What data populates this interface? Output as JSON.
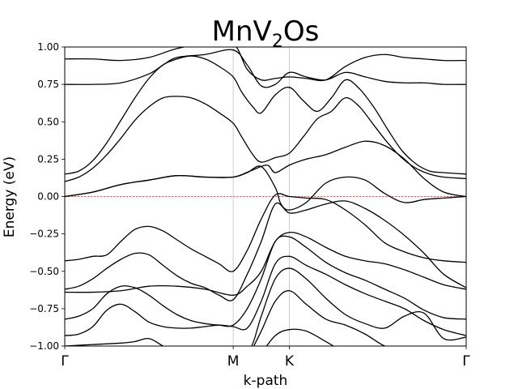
{
  "chart_data": {
    "type": "line",
    "title": {
      "main": "MnV",
      "subscript": "2",
      "suffix": "Os"
    },
    "xlabel": "k-path",
    "ylabel": "Energy (eV)",
    "xlim": [
      0,
      1.43
    ],
    "ylim": [
      -1.0,
      1.0
    ],
    "yticks": [
      -1.0,
      -0.75,
      -0.5,
      -0.25,
      0.0,
      0.25,
      0.5,
      0.75,
      1.0
    ],
    "ytick_labels": [
      "−1.00",
      "−0.75",
      "−0.50",
      "−0.25",
      "0.00",
      "0.25",
      "0.50",
      "0.75",
      "1.00"
    ],
    "high_symmetry_points": [
      {
        "label": "Γ",
        "x": 0.0
      },
      {
        "label": "M",
        "x": 0.6
      },
      {
        "label": "K",
        "x": 0.8
      },
      {
        "label": "Γ",
        "x": 1.43
      }
    ],
    "fermi_level": 0.0,
    "grid": false,
    "band_color": "#000000",
    "fermi_color": "#d62728",
    "vline_color": "#c8c8c8",
    "series": [
      {
        "x": [
          0,
          0.1,
          0.2,
          0.3,
          0.4,
          0.5,
          0.6,
          0.65,
          0.7,
          0.75,
          0.8,
          0.86,
          0.93,
          1.0,
          1.07,
          1.14,
          1.21,
          1.28,
          1.35,
          1.43
        ],
        "values": [
          0.92,
          0.92,
          0.91,
          0.93,
          0.99,
          1.02,
          1.02,
          0.85,
          0.78,
          0.79,
          0.8,
          0.79,
          0.78,
          0.87,
          0.93,
          0.95,
          0.93,
          0.92,
          0.91,
          0.91
        ]
      },
      {
        "x": [
          0,
          0.1,
          0.2,
          0.3,
          0.35,
          0.4,
          0.5,
          0.6,
          0.65,
          0.7,
          0.75,
          0.8,
          0.86,
          0.93,
          1.0,
          1.07,
          1.14,
          1.21,
          1.28,
          1.35,
          1.43
        ],
        "values": [
          0.75,
          0.75,
          0.76,
          0.82,
          0.88,
          0.93,
          0.95,
          0.98,
          0.88,
          0.74,
          0.75,
          0.83,
          0.8,
          0.78,
          0.83,
          0.8,
          0.77,
          0.76,
          0.76,
          0.75,
          0.75
        ]
      },
      {
        "x": [
          0,
          0.05,
          0.1,
          0.15,
          0.2,
          0.25,
          0.3,
          0.35,
          0.4,
          0.45,
          0.5,
          0.55,
          0.6,
          0.63,
          0.67,
          0.7,
          0.75,
          0.8,
          0.85,
          0.9,
          0.95,
          1.0,
          1.05,
          1.1,
          1.15,
          1.2,
          1.25,
          1.3,
          1.35,
          1.43
        ],
        "values": [
          0.15,
          0.17,
          0.24,
          0.36,
          0.51,
          0.66,
          0.79,
          0.88,
          0.92,
          0.94,
          0.92,
          0.87,
          0.8,
          0.7,
          0.6,
          0.56,
          0.68,
          0.73,
          0.64,
          0.57,
          0.66,
          0.78,
          0.72,
          0.6,
          0.45,
          0.31,
          0.22,
          0.17,
          0.16,
          0.15
        ]
      },
      {
        "x": [
          0,
          0.05,
          0.1,
          0.15,
          0.2,
          0.25,
          0.3,
          0.35,
          0.4,
          0.45,
          0.5,
          0.55,
          0.6,
          0.63,
          0.67,
          0.7,
          0.75,
          0.8,
          0.85,
          0.9,
          0.95,
          1.0,
          1.05,
          1.1,
          1.15,
          1.2,
          1.25,
          1.3,
          1.35,
          1.43
        ],
        "values": [
          0.1,
          0.13,
          0.19,
          0.28,
          0.39,
          0.51,
          0.6,
          0.66,
          0.67,
          0.66,
          0.62,
          0.56,
          0.49,
          0.4,
          0.28,
          0.23,
          0.26,
          0.29,
          0.4,
          0.52,
          0.57,
          0.66,
          0.6,
          0.48,
          0.36,
          0.26,
          0.19,
          0.15,
          0.13,
          0.12
        ]
      },
      {
        "x": [
          0,
          0.1,
          0.2,
          0.3,
          0.4,
          0.5,
          0.6,
          0.66,
          0.72,
          0.75,
          0.8,
          0.86,
          0.93,
          1.0,
          1.07,
          1.14,
          1.21,
          1.28,
          1.35,
          1.43
        ],
        "values": [
          0.0,
          0.03,
          0.08,
          0.11,
          0.14,
          0.13,
          0.13,
          0.17,
          0.21,
          0.16,
          0.21,
          0.25,
          0.28,
          0.33,
          0.37,
          0.34,
          0.25,
          0.12,
          0.03,
          0.0
        ]
      },
      {
        "x": [
          0,
          0.1,
          0.2,
          0.3,
          0.4,
          0.5,
          0.6,
          0.65,
          0.7,
          0.75,
          0.77,
          0.8,
          0.86,
          0.93,
          1.0,
          1.07,
          1.14,
          1.21,
          1.28,
          1.35,
          1.43
        ],
        "values": [
          0.0,
          0.03,
          0.08,
          0.11,
          0.14,
          0.13,
          0.13,
          0.16,
          0.2,
          0.06,
          -0.05,
          -0.09,
          -0.04,
          0.09,
          0.13,
          0.11,
          0.02,
          -0.04,
          -0.02,
          -0.01,
          0.0
        ]
      },
      {
        "x": [
          0,
          0.05,
          0.1,
          0.15,
          0.2,
          0.25,
          0.3,
          0.35,
          0.4,
          0.45,
          0.5,
          0.55,
          0.6,
          0.65,
          0.7,
          0.75,
          0.8,
          0.86,
          0.93,
          1.0,
          1.07,
          1.14,
          1.21,
          1.28,
          1.35,
          1.43
        ],
        "values": [
          -0.43,
          -0.42,
          -0.4,
          -0.39,
          -0.3,
          -0.22,
          -0.2,
          -0.23,
          -0.29,
          -0.35,
          -0.4,
          -0.45,
          -0.5,
          -0.36,
          -0.15,
          0.01,
          0.0,
          -0.01,
          -0.02,
          -0.09,
          -0.19,
          -0.31,
          -0.37,
          -0.41,
          -0.43,
          -0.44
        ]
      },
      {
        "x": [
          0,
          0.05,
          0.1,
          0.15,
          0.2,
          0.25,
          0.3,
          0.35,
          0.4,
          0.45,
          0.5,
          0.55,
          0.6,
          0.65,
          0.7,
          0.75,
          0.8,
          0.86,
          0.93,
          1.0,
          1.07,
          1.14,
          1.21,
          1.28,
          1.35,
          1.43
        ],
        "values": [
          -0.62,
          -0.6,
          -0.55,
          -0.48,
          -0.42,
          -0.38,
          -0.39,
          -0.46,
          -0.53,
          -0.58,
          -0.61,
          -0.66,
          -0.69,
          -0.52,
          -0.3,
          -0.05,
          -0.11,
          -0.09,
          -0.05,
          -0.03,
          -0.08,
          -0.16,
          -0.26,
          -0.38,
          -0.52,
          -0.61
        ]
      },
      {
        "x": [
          0,
          0.1,
          0.2,
          0.3,
          0.4,
          0.5,
          0.6,
          0.65,
          0.7,
          0.75,
          0.8,
          0.86,
          0.93,
          1.0,
          1.07,
          1.14,
          1.21,
          1.28,
          1.35,
          1.43
        ],
        "values": [
          -0.64,
          -0.64,
          -0.63,
          -0.6,
          -0.6,
          -0.62,
          -0.66,
          -0.6,
          -0.5,
          -0.3,
          -0.24,
          -0.27,
          -0.34,
          -0.4,
          -0.43,
          -0.45,
          -0.49,
          -0.54,
          -0.59,
          -0.62
        ]
      },
      {
        "x": [
          0,
          0.05,
          0.1,
          0.15,
          0.2,
          0.25,
          0.3,
          0.35,
          0.4,
          0.45,
          0.5,
          0.55,
          0.6,
          0.65,
          0.7,
          0.75,
          0.8,
          0.86,
          0.93,
          1.0,
          1.07,
          1.14,
          1.21,
          1.28,
          1.35,
          1.43
        ],
        "values": [
          -0.82,
          -0.8,
          -0.75,
          -0.65,
          -0.6,
          -0.61,
          -0.66,
          -0.73,
          -0.79,
          -0.83,
          -0.85,
          -0.86,
          -0.86,
          -0.75,
          -0.55,
          -0.3,
          -0.27,
          -0.34,
          -0.44,
          -0.51,
          -0.56,
          -0.62,
          -0.68,
          -0.76,
          -0.81,
          -0.82
        ]
      },
      {
        "x": [
          0,
          0.05,
          0.1,
          0.15,
          0.2,
          0.25,
          0.3,
          0.35,
          0.4,
          0.45,
          0.5,
          0.55,
          0.6,
          0.65,
          0.7,
          0.75,
          0.8,
          0.86,
          0.93,
          1.0,
          1.07,
          1.14,
          1.21,
          1.28,
          1.35,
          1.43
        ],
        "values": [
          -0.93,
          -0.92,
          -0.87,
          -0.76,
          -0.72,
          -0.77,
          -0.84,
          -0.87,
          -0.88,
          -0.88,
          -0.87,
          -0.86,
          -0.87,
          -0.88,
          -0.7,
          -0.45,
          -0.4,
          -0.46,
          -0.52,
          -0.59,
          -0.65,
          -0.7,
          -0.75,
          -0.83,
          -0.89,
          -0.93
        ]
      },
      {
        "x": [
          0,
          0.1,
          0.2,
          0.25,
          0.3,
          0.35,
          0.4,
          0.45,
          0.5,
          0.55,
          0.6,
          0.66,
          0.7,
          0.75,
          0.8,
          0.86,
          0.93,
          1.0,
          1.07,
          1.14,
          1.21,
          1.28,
          1.35,
          1.43
        ],
        "values": [
          -1.0,
          -0.99,
          -0.98,
          -0.97,
          -0.95,
          -1.0,
          -1.05,
          -1.08,
          -1.1,
          -1.1,
          -1.08,
          -1.02,
          -0.8,
          -0.55,
          -0.48,
          -0.55,
          -0.68,
          -0.79,
          -0.85,
          -0.88,
          -0.8,
          -0.78,
          -0.95,
          -0.94
        ]
      },
      {
        "x": [
          0.66,
          0.7,
          0.75,
          0.8,
          0.86,
          0.93,
          1.0,
          1.07,
          1.14,
          1.21,
          1.28
        ],
        "values": [
          -1.05,
          -0.9,
          -0.7,
          -0.63,
          -0.72,
          -0.82,
          -0.86,
          -0.92,
          -1.0,
          -1.03,
          -1.05
        ]
      },
      {
        "x": [
          0.7,
          0.75,
          0.8,
          0.86,
          0.93,
          1.0
        ],
        "values": [
          -1.05,
          -0.93,
          -0.89,
          -0.9,
          -0.97,
          -1.05
        ]
      }
    ]
  }
}
